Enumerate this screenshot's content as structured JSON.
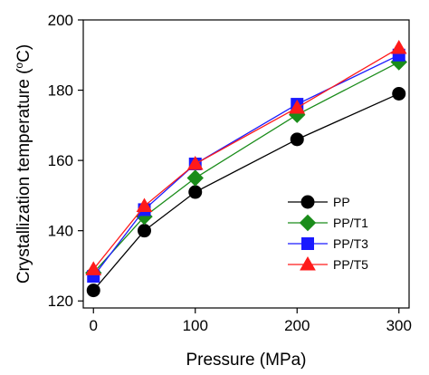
{
  "chart_data": {
    "type": "line",
    "xlabel": "Pressure (MPa)",
    "ylabel": {
      "main": "Crystallization temperature (",
      "super": "o",
      "unit": "C)"
    },
    "x": [
      0,
      50,
      100,
      200,
      300
    ],
    "xticks": [
      0,
      100,
      200,
      300
    ],
    "yticks": [
      120,
      140,
      160,
      180,
      200
    ],
    "xlim": [
      -10,
      310
    ],
    "ylim": [
      118,
      200
    ],
    "grid": false,
    "legend": "center-right",
    "series": [
      {
        "name": "PP",
        "marker": "circle",
        "color": "#000000",
        "values": [
          123,
          140,
          151,
          166,
          179
        ]
      },
      {
        "name": "PP/T1",
        "marker": "diamond",
        "color": "#1a8c1a",
        "values": [
          128,
          144,
          155,
          173,
          188
        ]
      },
      {
        "name": "PP/T3",
        "marker": "square",
        "color": "#1a1aff",
        "values": [
          127,
          146,
          159,
          176,
          190
        ]
      },
      {
        "name": "PP/T5",
        "marker": "triangle",
        "color": "#ff1a1a",
        "values": [
          129,
          147,
          159,
          175,
          192
        ]
      }
    ]
  }
}
